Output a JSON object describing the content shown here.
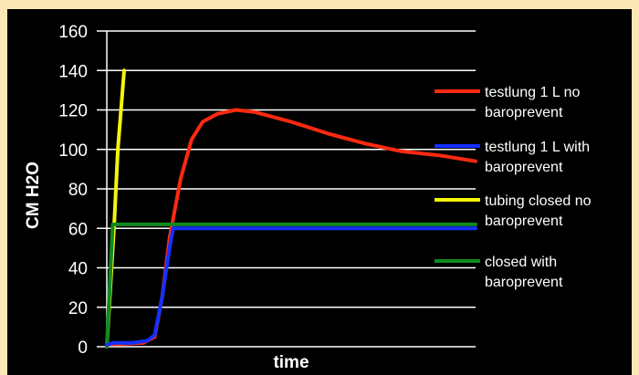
{
  "chart_data": {
    "type": "line",
    "title": "",
    "xlabel": "time",
    "ylabel": "CM H2O",
    "ylim": [
      0,
      160
    ],
    "xlim": [
      0,
      100
    ],
    "yticks": [
      0,
      20,
      40,
      60,
      80,
      100,
      120,
      140,
      160
    ],
    "grid": true,
    "legend_position": "right",
    "series": [
      {
        "name": "testlung 1 L no baroprevent",
        "legend_lines": [
          "testlung 1 L no",
          "baroprevent"
        ],
        "color": "#ff2a10",
        "points": [
          [
            0,
            1
          ],
          [
            10,
            2
          ],
          [
            13,
            5
          ],
          [
            15,
            25
          ],
          [
            17,
            55
          ],
          [
            20,
            85
          ],
          [
            23,
            105
          ],
          [
            26,
            114
          ],
          [
            30,
            118
          ],
          [
            35,
            120
          ],
          [
            40,
            119
          ],
          [
            50,
            114
          ],
          [
            60,
            108
          ],
          [
            70,
            103
          ],
          [
            80,
            99
          ],
          [
            90,
            97
          ],
          [
            100,
            94
          ]
        ]
      },
      {
        "name": "testlung 1 L with baroprevent",
        "legend_lines": [
          "testlung 1 L with",
          "baroprevent"
        ],
        "color": "#1530ff",
        "points": [
          [
            0,
            1
          ],
          [
            2,
            2
          ],
          [
            7,
            2
          ],
          [
            11,
            3
          ],
          [
            13,
            6
          ],
          [
            15,
            25
          ],
          [
            17,
            50
          ],
          [
            18,
            60
          ],
          [
            100,
            60
          ]
        ]
      },
      {
        "name": "tubing closed no baroprevent",
        "legend_lines": [
          "tubing closed no",
          "baroprevent"
        ],
        "color": "#f5f50a",
        "points": [
          [
            0,
            0
          ],
          [
            2,
            62
          ],
          [
            3,
            100
          ],
          [
            4.7,
            140
          ]
        ]
      },
      {
        "name": "closed with baroprevent",
        "legend_lines": [
          " closed with",
          "baroprevent"
        ],
        "color": "#0f8a1f",
        "points": [
          [
            0,
            0
          ],
          [
            1.6,
            62
          ],
          [
            100,
            62
          ]
        ]
      }
    ]
  }
}
